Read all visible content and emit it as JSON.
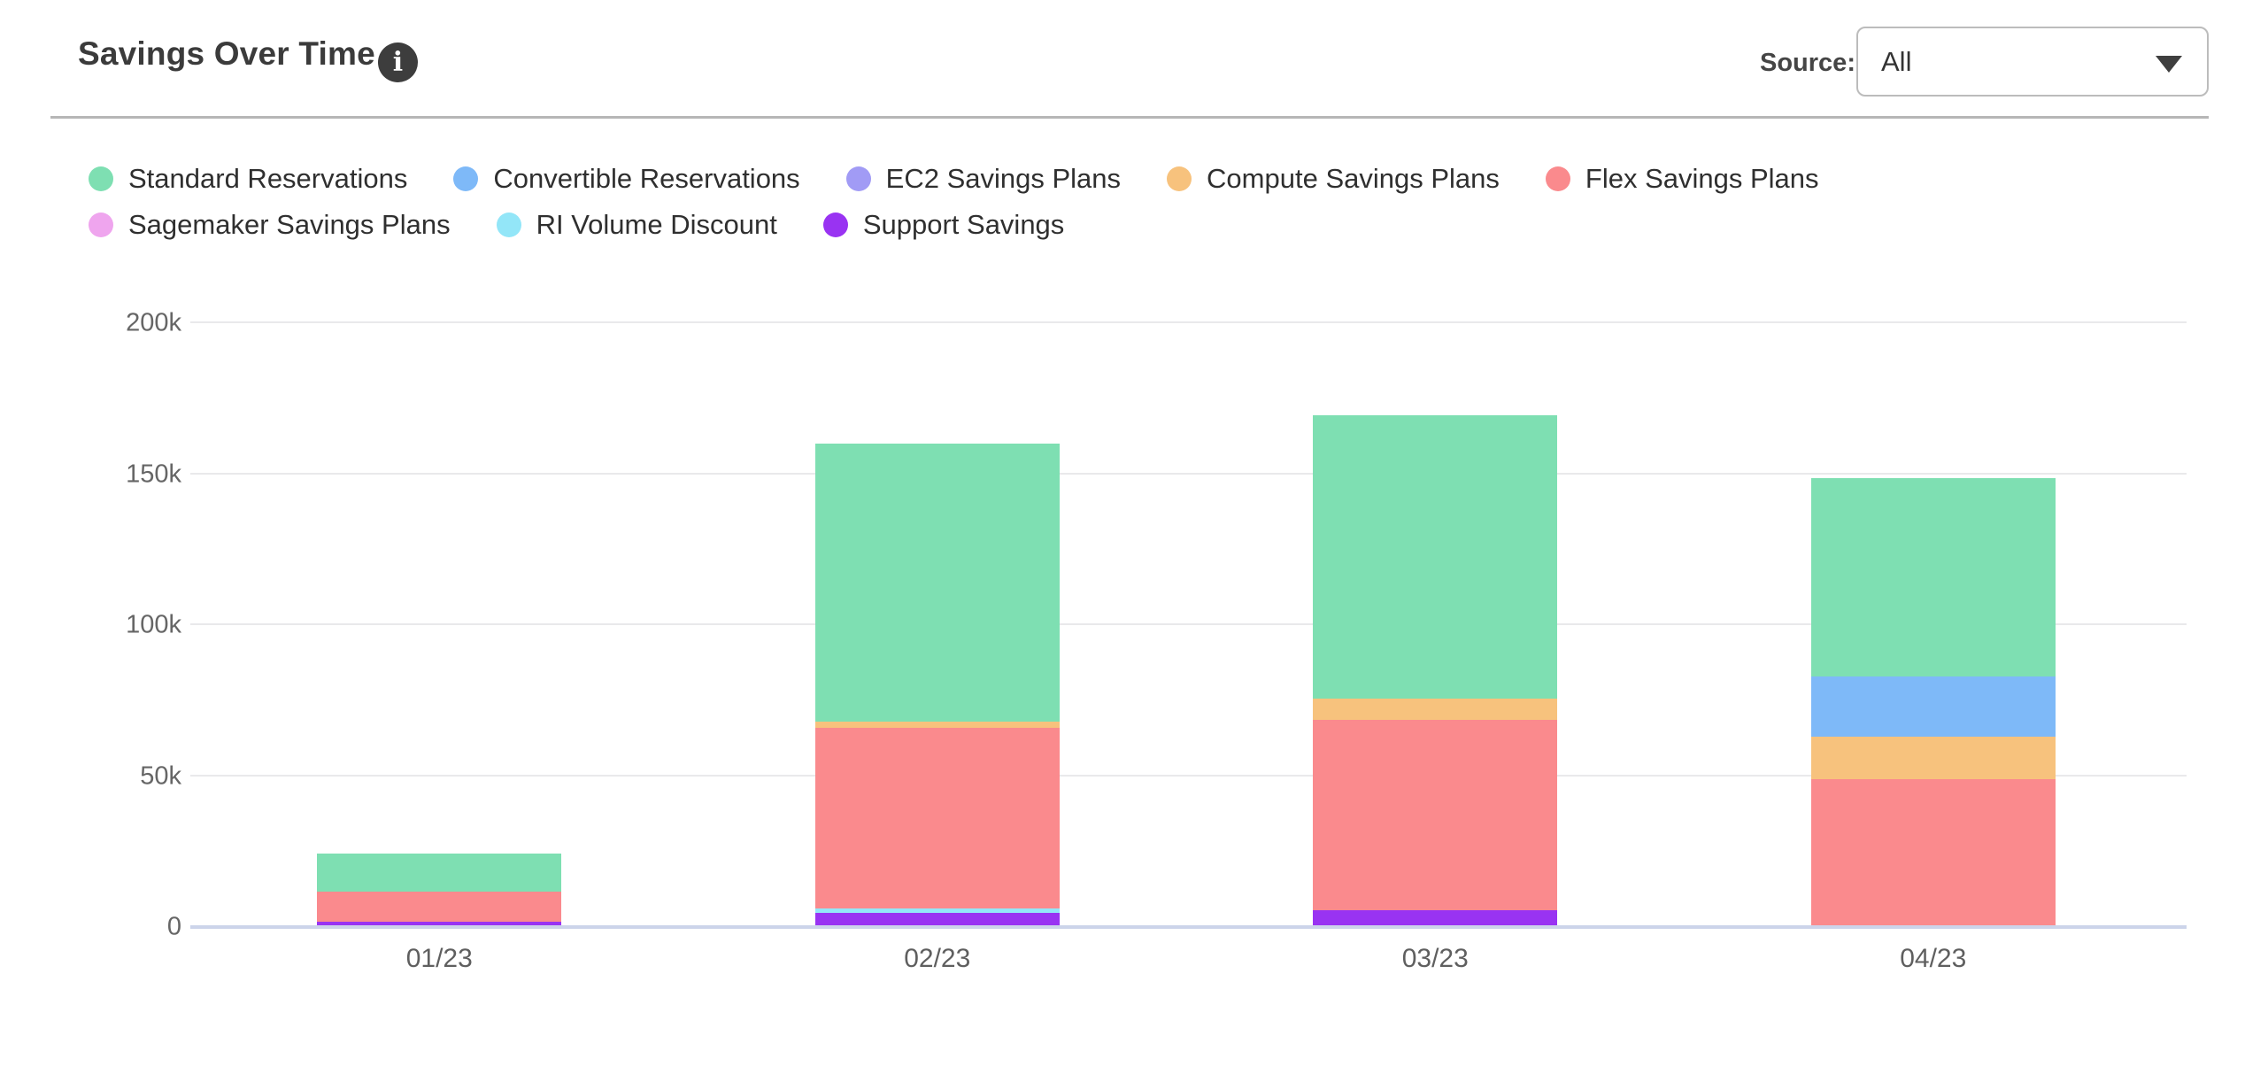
{
  "header": {
    "title": "Savings Over Time",
    "source_label": "Source:",
    "source_value": "All"
  },
  "chart_data": {
    "type": "bar",
    "stacked": true,
    "title": "Savings Over Time",
    "unit": "USD thousands",
    "categories": [
      "01/23",
      "02/23",
      "03/23",
      "04/23"
    ],
    "series": [
      {
        "name": "Standard Reservations",
        "color": "#7EDFB2",
        "values": [
          12.5,
          92,
          94,
          65.5
        ]
      },
      {
        "name": "Convertible Reservations",
        "color": "#7EB9F8",
        "values": [
          0,
          0,
          0,
          20
        ]
      },
      {
        "name": "EC2 Savings Plans",
        "color": "#A19BF5",
        "values": [
          0,
          0,
          0,
          0
        ]
      },
      {
        "name": "Compute Savings Plans",
        "color": "#F7C27D",
        "values": [
          0,
          2,
          7,
          14
        ]
      },
      {
        "name": "Flex Savings Plans",
        "color": "#FA8A8D",
        "values": [
          10,
          60,
          63,
          48.5
        ]
      },
      {
        "name": "Sagemaker Savings Plans",
        "color": "#EFA5EE",
        "values": [
          0,
          0,
          0,
          0
        ]
      },
      {
        "name": "RI Volume Discount",
        "color": "#93E6F8",
        "values": [
          0,
          1.5,
          0,
          0
        ]
      },
      {
        "name": "Support Savings",
        "color": "#9933F2",
        "values": [
          1.2,
          4,
          5,
          0
        ]
      }
    ],
    "stack_order_bottom_to_top": [
      "Support Savings",
      "RI Volume Discount",
      "Sagemaker Savings Plans",
      "Flex Savings Plans",
      "Compute Savings Plans",
      "EC2 Savings Plans",
      "Convertible Reservations",
      "Standard Reservations"
    ],
    "totals": [
      23.7,
      159.5,
      169,
      148
    ],
    "y_axis": {
      "max": 200,
      "ticks": [
        {
          "label": "200k",
          "value": 200
        },
        {
          "label": "150k",
          "value": 150
        },
        {
          "label": "100k",
          "value": 100
        },
        {
          "label": "50k",
          "value": 50
        },
        {
          "label": "0",
          "value": 0
        }
      ]
    },
    "legend_position": "top-left",
    "grid": true
  }
}
